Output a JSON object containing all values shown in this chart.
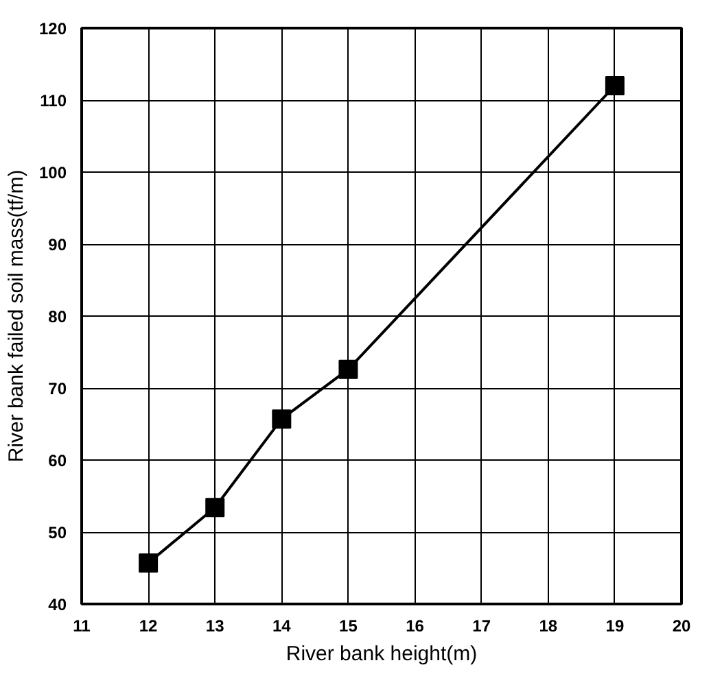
{
  "chart_data": {
    "type": "line",
    "xlabel": "River bank height(m)",
    "ylabel": "River bank failed soil mass(tf/m)",
    "x": [
      12,
      13,
      14,
      15,
      19
    ],
    "series": [
      {
        "color": "#000000",
        "values": [
          45.7,
          53.4,
          65.7,
          72.6,
          112
        ]
      }
    ],
    "xlim": [
      11,
      20
    ],
    "xticks": [
      11,
      12,
      13,
      14,
      15,
      16,
      17,
      18,
      19,
      20
    ],
    "ylim": [
      40,
      120
    ],
    "yticks": [
      40,
      50,
      60,
      70,
      80,
      90,
      100,
      110,
      120
    ],
    "grid": true,
    "marker": "square",
    "line_style": "solid"
  }
}
